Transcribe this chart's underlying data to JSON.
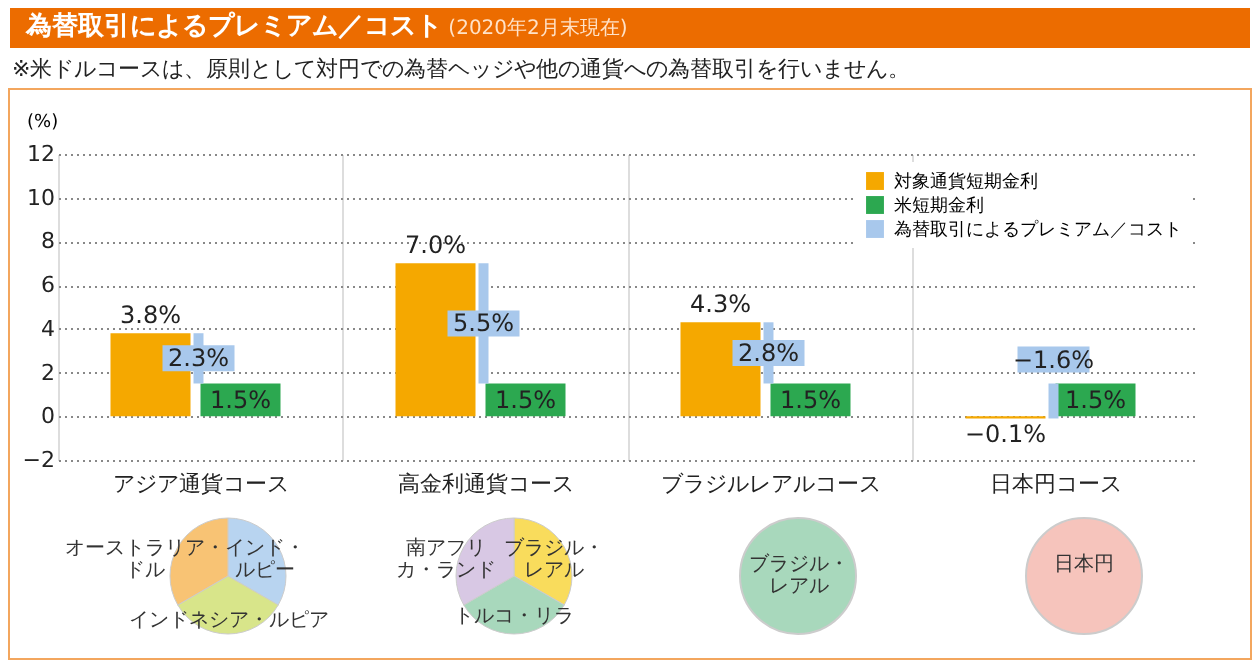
{
  "chart_data": {
    "type": "bar",
    "title": "為替取引によるプレミアム／コスト",
    "subtitle": "(2020年2月末現在)",
    "ylabel": "(%)",
    "categories": [
      "アジア通貨コース",
      "高金利通貨コース",
      "ブラジルレアルコース",
      "日本円コース"
    ],
    "series": [
      {
        "name": "対象通貨短期金利",
        "color": "#f5a800",
        "values": [
          3.8,
          7.0,
          4.3,
          -0.1
        ],
        "value_labels": [
          "3.8%",
          "7.0%",
          "4.3%",
          "−0.1%"
        ]
      },
      {
        "name": "米短期金利",
        "color": "#2ca850",
        "values": [
          1.5,
          1.5,
          1.5,
          1.5
        ],
        "value_labels": [
          "1.5%",
          "1.5%",
          "1.5%",
          "1.5%"
        ]
      },
      {
        "name": "為替取引によるプレミアム／コスト",
        "color": "#a8c8ec",
        "values": [
          2.3,
          5.5,
          2.8,
          -1.6
        ],
        "base": [
          1.5,
          1.5,
          1.5,
          1.5
        ],
        "value_labels": [
          "2.3%",
          "5.5%",
          "2.8%",
          "−1.6%"
        ]
      }
    ],
    "ylim": [
      -2,
      12
    ],
    "yticks": [
      -2,
      0,
      2,
      4,
      6,
      8,
      10,
      12
    ],
    "grid": true,
    "legend": "top right",
    "annotations": [
      "※米ドルコースは、原則として対円での為替ヘッジや他の通貨への為替取引を行いません。",
      "オーストラリア・ドル",
      "インド・ルピー",
      "インドネシア・ルピア",
      "南アフリカ・ランド",
      "ブラジル・レアル",
      "トルコ・リラ",
      "ブラジル・レアル",
      "日本円"
    ]
  }
}
